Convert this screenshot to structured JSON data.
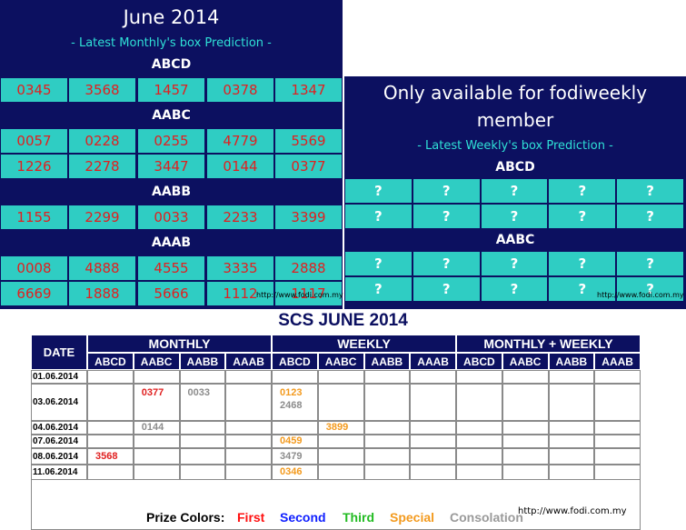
{
  "monthly_panel": {
    "title": "June 2014",
    "subtitle": "- Latest Monthly's box Prediction -",
    "sections": [
      {
        "label": "ABCD",
        "rows": [
          [
            "0345",
            "3568",
            "1457",
            "0378",
            "1347"
          ]
        ]
      },
      {
        "label": "AABC",
        "rows": [
          [
            "0057",
            "0228",
            "0255",
            "4779",
            "5569"
          ],
          [
            "1226",
            "2278",
            "3447",
            "0144",
            "0377"
          ]
        ]
      },
      {
        "label": "AABB",
        "rows": [
          [
            "1155",
            "2299",
            "0033",
            "2233",
            "3399"
          ]
        ]
      },
      {
        "label": "AAAB",
        "rows": [
          [
            "0008",
            "4888",
            "4555",
            "3335",
            "2888"
          ],
          [
            "6669",
            "1888",
            "5666",
            "1112",
            "1117"
          ]
        ]
      }
    ],
    "watermark": "http://www.fodi.com.my"
  },
  "weekly_panel": {
    "title_line1": "Only available for fodiweekly",
    "title_line2": "member",
    "subtitle": "- Latest Weekly's box Prediction -",
    "placeholder": "?",
    "sections": [
      {
        "label": "ABCD",
        "row_count": 2
      },
      {
        "label": "AABC",
        "row_count": 2
      }
    ],
    "watermark": "http://www.fodi.com.my"
  },
  "scs_table": {
    "title": "SCS JUNE 2014",
    "date_header": "DATE",
    "groups": [
      "MONTHLY",
      "WEEKLY",
      "MONTHLY + WEEKLY"
    ],
    "columns": [
      "ABCD",
      "AABC",
      "AABB",
      "AAAB"
    ],
    "rows": [
      {
        "date": "01.06.2014"
      },
      {
        "date": "03.06.2014"
      },
      {
        "date": "04.06.2014"
      },
      {
        "date": "07.06.2014"
      },
      {
        "date": "08.06.2014"
      },
      {
        "date": "11.06.2014"
      }
    ],
    "entries": [
      {
        "row": 1,
        "col": 1,
        "value": "0377",
        "color": "#e02020"
      },
      {
        "row": 1,
        "col": 2,
        "value": "0033",
        "color": "#8c8c8c"
      },
      {
        "row": 1,
        "col": 4,
        "value": "0123",
        "color": "#f39a1e"
      },
      {
        "row": 1,
        "col": 4,
        "value": "2468",
        "color": "#8c8c8c"
      },
      {
        "row": 2,
        "col": 1,
        "value": "0144",
        "color": "#8c8c8c"
      },
      {
        "row": 2,
        "col": 5,
        "value": "3899",
        "color": "#f39a1e"
      },
      {
        "row": 3,
        "col": 4,
        "value": "0459",
        "color": "#f39a1e"
      },
      {
        "row": 4,
        "col": 0,
        "value": "3568",
        "color": "#e02020"
      },
      {
        "row": 4,
        "col": 4,
        "value": "3479",
        "color": "#8c8c8c"
      },
      {
        "row": 5,
        "col": 4,
        "value": "0346",
        "color": "#f39a1e"
      }
    ],
    "watermark": "http://www.fodi.com.my"
  },
  "prize_legend": {
    "label": "Prize Colors:",
    "items": [
      {
        "name": "First",
        "color": "#ff1010"
      },
      {
        "name": "Second",
        "color": "#1020ff"
      },
      {
        "name": "Third",
        "color": "#22bb22"
      },
      {
        "name": "Special",
        "color": "#f39a1e"
      },
      {
        "name": "Consolation",
        "color": "#9a9a9a"
      }
    ]
  }
}
